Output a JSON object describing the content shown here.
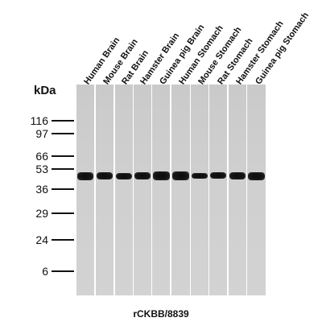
{
  "lanes": [
    {
      "label": "Human Brain"
    },
    {
      "label": "Mouse Brain"
    },
    {
      "label": "Rat Brain"
    },
    {
      "label": "Hamster Brain"
    },
    {
      "label": "Guinea pig Brain"
    },
    {
      "label": "Human Stomach"
    },
    {
      "label": "Mouse Stomach"
    },
    {
      "label": "Rat Stomach"
    },
    {
      "label": "Hamster Stomach"
    },
    {
      "label": "Guinea pig Stomach"
    }
  ],
  "axis": {
    "unit_label": "kDa",
    "markers": [
      "116",
      "97",
      "66",
      "53",
      "36",
      "29",
      "24",
      "6"
    ]
  },
  "caption": "rCKBB/8839",
  "colors": {
    "background": "#ffffff",
    "lane": "#cdcdcd",
    "band": "#111111"
  }
}
